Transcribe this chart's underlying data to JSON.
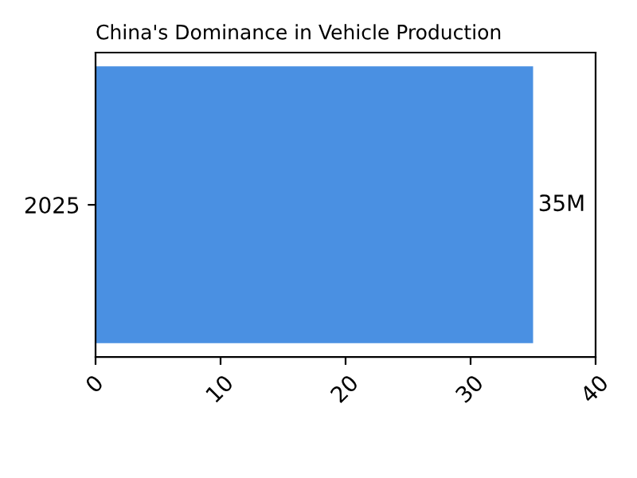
{
  "chart_data": {
    "type": "bar",
    "orientation": "horizontal",
    "title": "China's Dominance in Vehicle Production",
    "categories": [
      "2025"
    ],
    "values": [
      35
    ],
    "value_labels": [
      "35M"
    ],
    "color": "#4a90e2",
    "xlim": [
      0,
      40
    ],
    "xticks": [
      0,
      10,
      20,
      30,
      40
    ],
    "grid": false
  }
}
